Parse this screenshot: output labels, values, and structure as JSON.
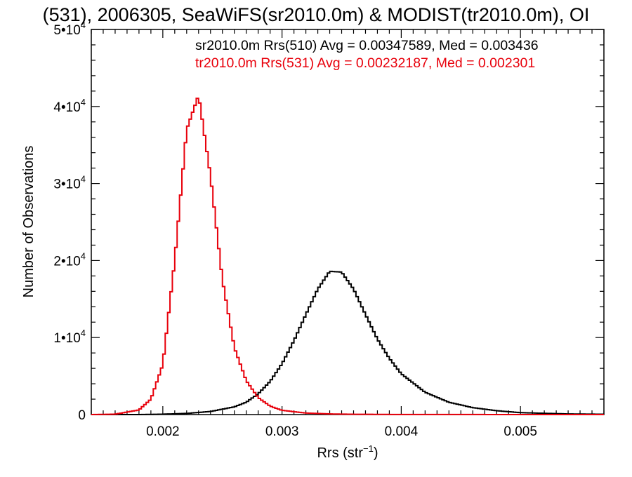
{
  "chart_data": {
    "type": "line",
    "title": "(531), 2006305, SeaWiFS(sr2010.0m) & MODIST(tr2010.0m), OI",
    "xlabel": "Rrs (str",
    "xlabel_sup": "−1",
    "xlabel_close": ")",
    "ylabel": "Number of Observations",
    "xlim": [
      0.0014,
      0.0057
    ],
    "ylim": [
      0,
      50000
    ],
    "x_ticks": [
      {
        "value": 0.002,
        "label": "0.002"
      },
      {
        "value": 0.003,
        "label": "0.003"
      },
      {
        "value": 0.004,
        "label": "0.004"
      },
      {
        "value": 0.005,
        "label": "0.005"
      }
    ],
    "y_ticks": [
      {
        "value": 0,
        "base": "0",
        "exp": ""
      },
      {
        "value": 10000,
        "base": "1•10",
        "exp": "4"
      },
      {
        "value": 20000,
        "base": "2•10",
        "exp": "4"
      },
      {
        "value": 30000,
        "base": "3•10",
        "exp": "4"
      },
      {
        "value": 40000,
        "base": "4•10",
        "exp": "4"
      },
      {
        "value": 50000,
        "base": "5•10",
        "exp": "4"
      }
    ],
    "grid": false,
    "legend_position": "top-right",
    "series": [
      {
        "name": "sr2010.0m Rrs(510) Avg = 0.00347589, Med = 0.003436",
        "color": "#000000",
        "x": [
          0.0014,
          0.0018,
          0.002,
          0.0022,
          0.0024,
          0.0026,
          0.0027,
          0.0028,
          0.0029,
          0.003,
          0.0031,
          0.0032,
          0.0033,
          0.0034,
          0.0035,
          0.0036,
          0.0037,
          0.0038,
          0.0039,
          0.004,
          0.0042,
          0.0044,
          0.0046,
          0.0048,
          0.005,
          0.0054,
          0.0057
        ],
        "y": [
          0,
          0,
          50,
          150,
          400,
          1000,
          1600,
          2700,
          4300,
          6600,
          9600,
          13000,
          16300,
          18600,
          18500,
          16300,
          13000,
          9800,
          7300,
          5300,
          2900,
          1600,
          900,
          500,
          250,
          80,
          40
        ]
      },
      {
        "name": "tr2010.0m Rrs(531) Avg = 0.00232187, Med = 0.002301",
        "color": "#e8000b",
        "x": [
          0.0014,
          0.0016,
          0.0018,
          0.0019,
          0.002,
          0.0021,
          0.0022,
          0.0023,
          0.0024,
          0.0025,
          0.0026,
          0.0027,
          0.0028,
          0.0029,
          0.003,
          0.0032,
          0.0034,
          0.0036,
          0.004,
          0.0057
        ],
        "y": [
          0,
          50,
          600,
          2000,
          6500,
          20000,
          37000,
          41500,
          31000,
          17500,
          8700,
          4400,
          2200,
          1100,
          550,
          200,
          80,
          40,
          10,
          0
        ]
      }
    ]
  }
}
